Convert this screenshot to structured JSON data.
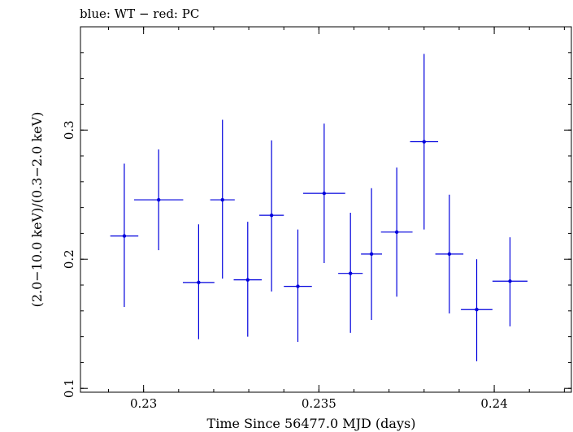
{
  "chart_data": {
    "type": "scatter",
    "title": "blue: WT − red: PC",
    "xlabel": "Time Since 56477.0 MJD (days)",
    "ylabel": "(2.0−10.0 keV)/(0.3−2.0 keV)",
    "xlim": [
      0.2282,
      0.2422
    ],
    "ylim": [
      0.097,
      0.38
    ],
    "x_ticks": [
      0.23,
      0.235,
      0.24
    ],
    "x_tick_labels": [
      "0.23",
      "0.235",
      "0.24"
    ],
    "y_ticks": [
      0.1,
      0.2,
      0.3
    ],
    "y_tick_labels": [
      "0.1",
      "0.2",
      "0.3"
    ],
    "x_minor_step": 0.001,
    "y_minor_step": 0.02,
    "grid": false,
    "series": [
      {
        "color": "#0000dd",
        "points": [
          {
            "x": 0.22945,
            "xerr": 0.0004,
            "y": 0.218,
            "ylo": 0.163,
            "yhi": 0.274
          },
          {
            "x": 0.23043,
            "xerr": 0.0007,
            "y": 0.246,
            "ylo": 0.207,
            "yhi": 0.285
          },
          {
            "x": 0.23157,
            "xerr": 0.00045,
            "y": 0.182,
            "ylo": 0.138,
            "yhi": 0.227
          },
          {
            "x": 0.23225,
            "xerr": 0.00035,
            "y": 0.246,
            "ylo": 0.185,
            "yhi": 0.308
          },
          {
            "x": 0.23297,
            "xerr": 0.0004,
            "y": 0.184,
            "ylo": 0.14,
            "yhi": 0.229
          },
          {
            "x": 0.23365,
            "xerr": 0.00035,
            "y": 0.234,
            "ylo": 0.175,
            "yhi": 0.292
          },
          {
            "x": 0.2344,
            "xerr": 0.0004,
            "y": 0.179,
            "ylo": 0.136,
            "yhi": 0.223
          },
          {
            "x": 0.23515,
            "xerr": 0.0006,
            "y": 0.251,
            "ylo": 0.197,
            "yhi": 0.305
          },
          {
            "x": 0.2359,
            "xerr": 0.00035,
            "y": 0.189,
            "ylo": 0.143,
            "yhi": 0.236
          },
          {
            "x": 0.2365,
            "xerr": 0.0003,
            "y": 0.204,
            "ylo": 0.153,
            "yhi": 0.255
          },
          {
            "x": 0.23722,
            "xerr": 0.00045,
            "y": 0.221,
            "ylo": 0.171,
            "yhi": 0.271
          },
          {
            "x": 0.238,
            "xerr": 0.0004,
            "y": 0.291,
            "ylo": 0.223,
            "yhi": 0.359
          },
          {
            "x": 0.23872,
            "xerr": 0.0004,
            "y": 0.204,
            "ylo": 0.158,
            "yhi": 0.25
          },
          {
            "x": 0.2395,
            "xerr": 0.00045,
            "y": 0.161,
            "ylo": 0.121,
            "yhi": 0.2
          },
          {
            "x": 0.24045,
            "xerr": 0.0005,
            "y": 0.183,
            "ylo": 0.148,
            "yhi": 0.217
          }
        ]
      }
    ]
  }
}
